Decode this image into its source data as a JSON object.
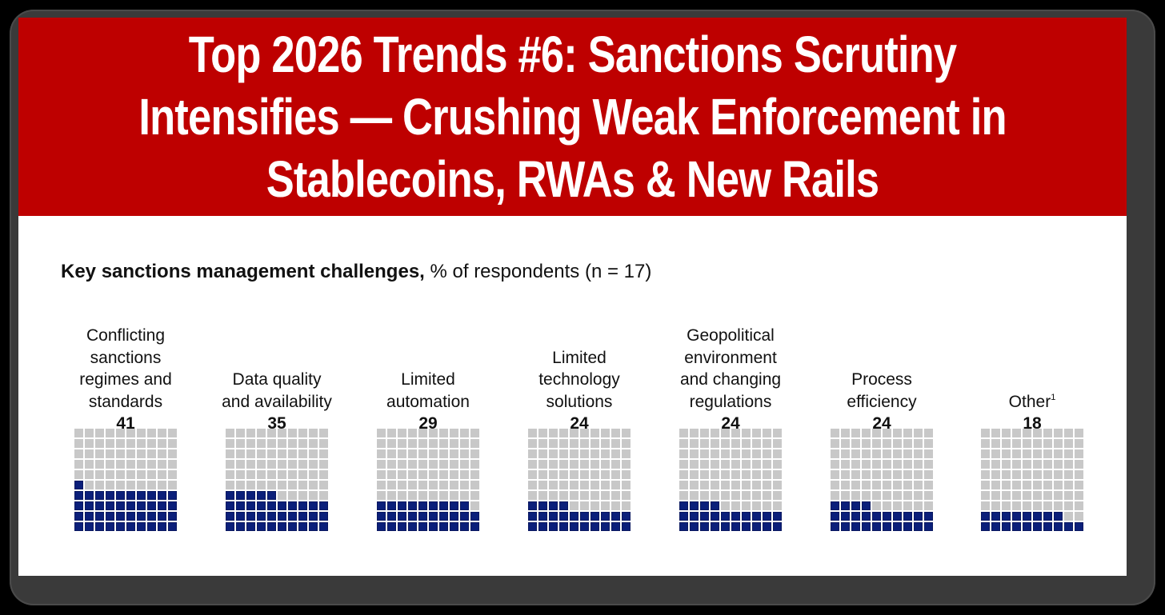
{
  "banner": {
    "title_lines": [
      "Top 2026 Trends #6: Sanctions Scrutiny",
      "Intensifies — Crushing Weak Enforcement in",
      "Stablecoins, RWAs & New Rails"
    ],
    "background_color": "#BE0000"
  },
  "chart_heading": {
    "bold": "Key sanctions management challenges,",
    "regular": " % of respondents (n = 17)"
  },
  "colors": {
    "filled": "#0B1F7A",
    "empty": "#C8C8C8"
  },
  "chart_data": {
    "type": "waffle",
    "title": "Key sanctions management challenges, % of respondents (n = 17)",
    "grid": {
      "rows": 10,
      "cols": 10,
      "fill_order": "bottom-up, left-to-right"
    },
    "unit": "% of respondents",
    "categories": [
      "Conflicting sanctions regimes and standards",
      "Data quality and availability",
      "Limited automation",
      "Limited technology solutions",
      "Geopolitical environment and changing regulations",
      "Process efficiency",
      "Other¹"
    ],
    "values": [
      41,
      35,
      29,
      24,
      24,
      24,
      18
    ],
    "items": [
      {
        "label": "Conflicting\nsanctions\nregimes and\nstandards",
        "value": "41",
        "pct": 41
      },
      {
        "label": "Data quality\nand availability",
        "value": "35",
        "pct": 35
      },
      {
        "label": "Limited\nautomation",
        "value": "29",
        "pct": 29
      },
      {
        "label": "Limited\ntechnology\nsolutions",
        "value": "24",
        "pct": 24
      },
      {
        "label": "Geopolitical\nenvironment\nand changing\nregulations",
        "value": "24",
        "pct": 24
      },
      {
        "label": "Process\nefficiency",
        "value": "24",
        "pct": 24
      },
      {
        "label": "Other",
        "footnote": "1",
        "value": "18",
        "pct": 18
      }
    ]
  }
}
